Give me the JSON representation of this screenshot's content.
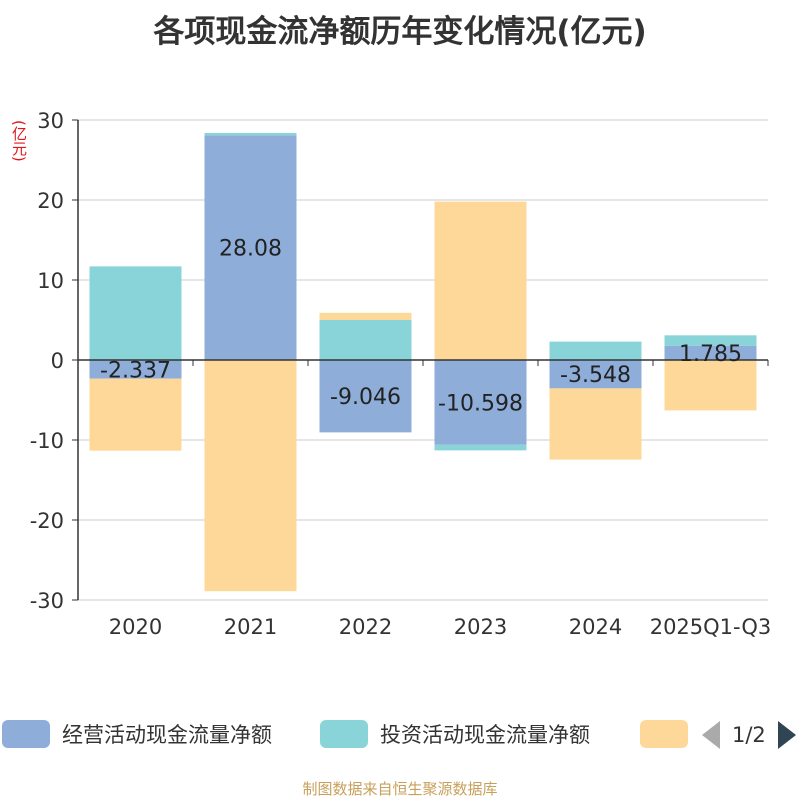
{
  "title": "各项现金流净额历年变化情况(亿元)",
  "footer": "制图数据来自恒生聚源数据库",
  "pager": {
    "text": "1/2"
  },
  "chart_data": {
    "type": "bar",
    "stacked": true,
    "unit_label": "(亿元)",
    "categories": [
      "2020",
      "2021",
      "2022",
      "2023",
      "2024",
      "2025Q1-Q3"
    ],
    "ylim": [
      -30,
      30
    ],
    "yticks": [
      30,
      20,
      10,
      0,
      -10,
      -20,
      -30
    ],
    "grid": true,
    "legend_position": "bottom",
    "series": [
      {
        "name": "经营活动现金流量净额",
        "color": "#8eaed9",
        "values": [
          -2.337,
          28.08,
          -9.046,
          -10.598,
          -3.548,
          1.785
        ],
        "labels": [
          "-2.337",
          "28.08",
          "-9.046",
          "-10.598",
          "-3.548",
          "1.785"
        ]
      },
      {
        "name": "投资活动现金流量净额",
        "color": "#88d4d8",
        "values": [
          11.7,
          0.3,
          5.0,
          -0.7,
          2.3,
          1.3
        ]
      },
      {
        "name": "",
        "color": "#fed898",
        "values": [
          -9.0,
          -28.9,
          0.9,
          19.8,
          -8.9,
          -6.3
        ]
      }
    ]
  }
}
